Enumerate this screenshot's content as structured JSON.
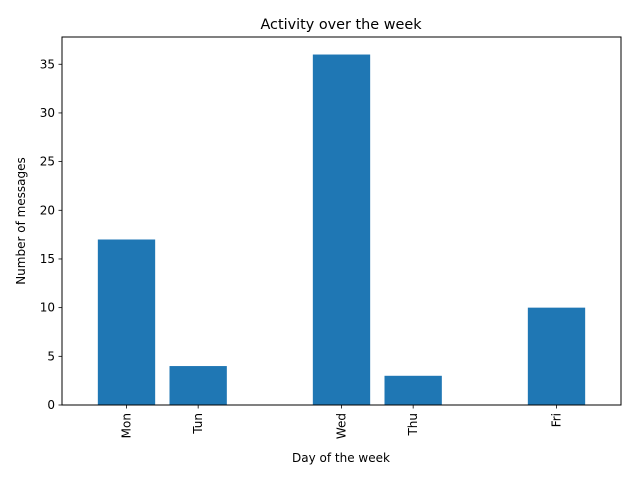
{
  "chart_data": {
    "type": "bar",
    "title": "Activity over the week",
    "xlabel": "Day of the week",
    "ylabel": "Number of messages",
    "categories": [
      "Mon",
      "Tun",
      "Wed",
      "Thu",
      "Fri"
    ],
    "x": [
      0,
      1,
      3,
      4,
      6
    ],
    "values": [
      17,
      4,
      36,
      3,
      10
    ],
    "xlim": [
      -0.9,
      6.9
    ],
    "ylim": [
      0,
      37.8
    ],
    "yticks": [
      0,
      5,
      10,
      15,
      20,
      25,
      30,
      35
    ],
    "ytick_labels": [
      "0",
      "5",
      "10",
      "15",
      "20",
      "25",
      "30",
      "35"
    ],
    "bar_width": 0.8,
    "bar_color": "#1f77b4",
    "grid": false,
    "xtick_rotation": "vertical"
  }
}
